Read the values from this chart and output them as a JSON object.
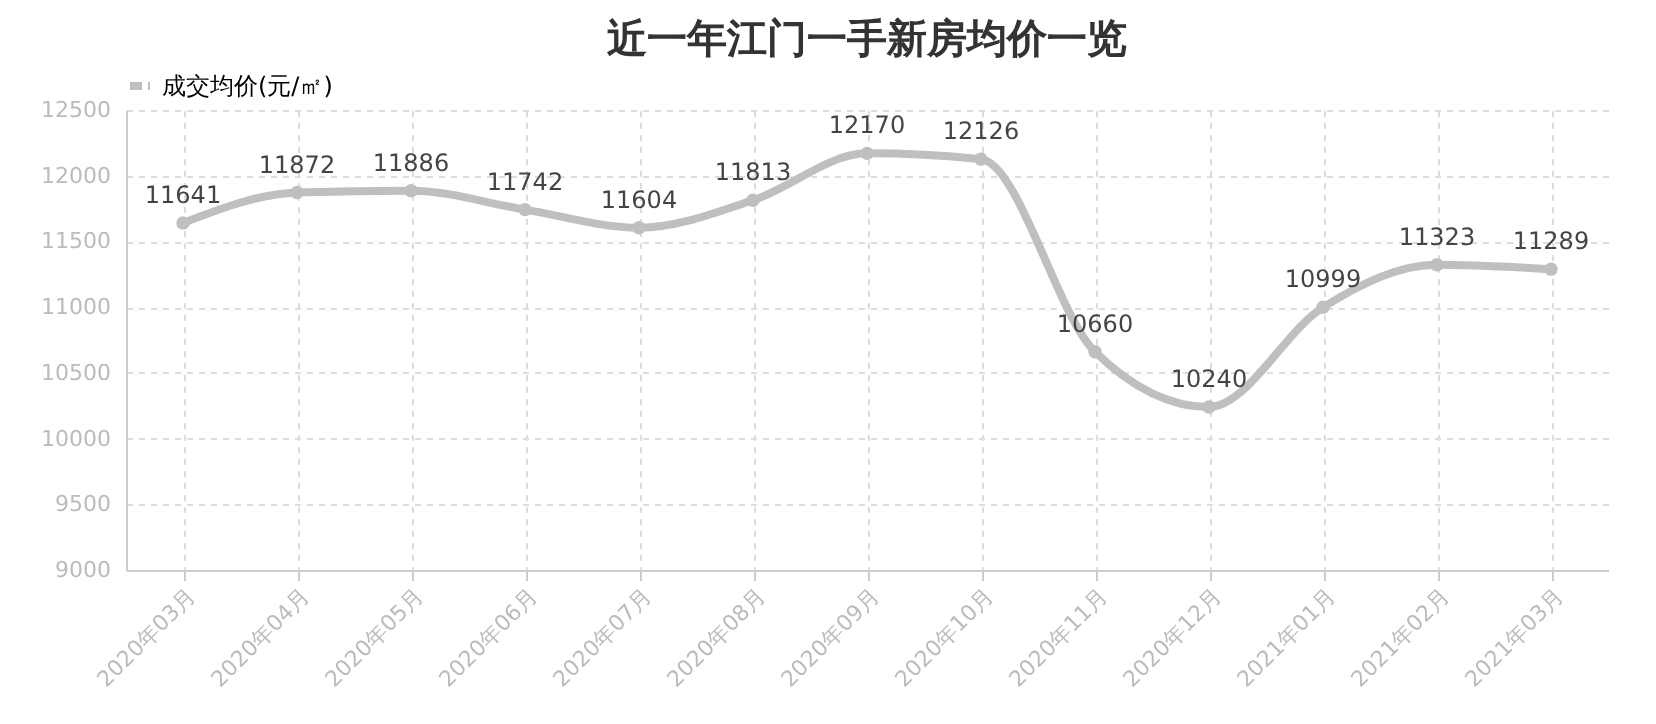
{
  "chart_data": {
    "type": "line",
    "title": "近一年江门一手新房均价一览",
    "categories": [
      "2020年03月",
      "2020年04月",
      "2020年05月",
      "2020年06月",
      "2020年07月",
      "2020年08月",
      "2020年09月",
      "2020年10月",
      "2020年11月",
      "2020年12月",
      "2021年01月",
      "2021年02月",
      "2021年03月"
    ],
    "series": [
      {
        "name": "成交均价(元/㎡)",
        "color": "#c0bfc0",
        "values": [
          11641,
          11872,
          11886,
          11742,
          11604,
          11813,
          12170,
          12126,
          10660,
          10240,
          10999,
          11323,
          11289
        ]
      }
    ],
    "ylim": [
      9000,
      12500
    ],
    "yticks": [
      9000,
      9500,
      10000,
      10500,
      11000,
      11500,
      12000,
      12500
    ],
    "grid": true,
    "legend": "top",
    "marker": "circle",
    "line_style": "solid",
    "data_labels": true
  }
}
